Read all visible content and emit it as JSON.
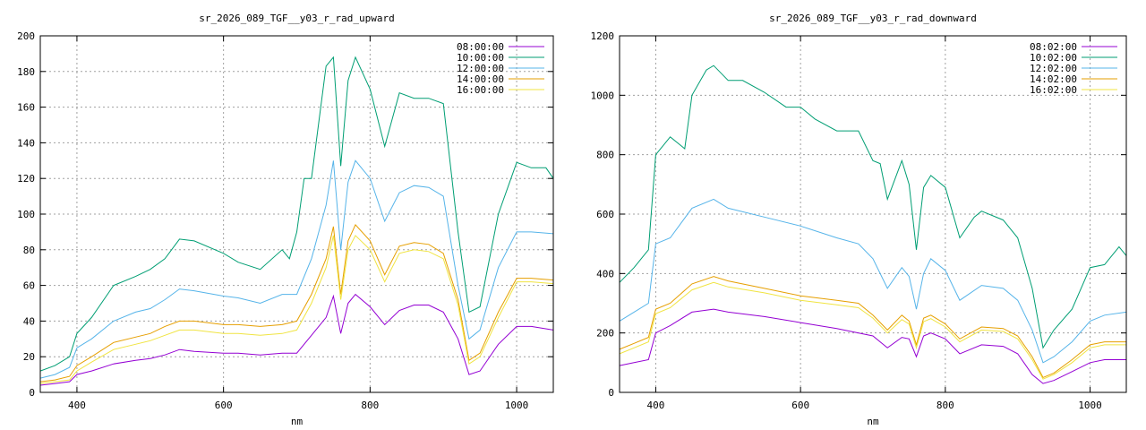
{
  "chart_data": [
    {
      "type": "line",
      "title": "sr_2026_089_TGF__y03_r_rad_upward",
      "xlabel": "nm",
      "ylabel": "",
      "xlim": [
        350,
        1050
      ],
      "ylim": [
        0,
        200
      ],
      "xticks": [
        400,
        600,
        800,
        1000
      ],
      "yticks": [
        0,
        20,
        40,
        60,
        80,
        100,
        120,
        140,
        160,
        180,
        200
      ],
      "grid": true,
      "legend": "top-right",
      "series": [
        {
          "name": "08:00:00",
          "color": "#9400d3",
          "x": [
            350,
            370,
            390,
            400,
            420,
            450,
            480,
            500,
            520,
            540,
            560,
            600,
            620,
            650,
            680,
            700,
            720,
            740,
            750,
            760,
            770,
            780,
            800,
            820,
            840,
            860,
            880,
            900,
            920,
            935,
            950,
            975,
            1000,
            1020,
            1050
          ],
          "y": [
            4,
            5,
            6,
            10,
            12,
            16,
            18,
            19,
            21,
            24,
            23,
            22,
            22,
            21,
            22,
            22,
            32,
            42,
            54,
            33,
            50,
            55,
            48,
            38,
            46,
            49,
            49,
            45,
            30,
            10,
            12,
            27,
            37,
            37,
            35
          ]
        },
        {
          "name": "10:00:00",
          "color": "#009e73",
          "x": [
            350,
            370,
            390,
            400,
            420,
            450,
            480,
            500,
            520,
            540,
            560,
            600,
            620,
            650,
            680,
            690,
            700,
            710,
            720,
            740,
            750,
            760,
            770,
            780,
            800,
            820,
            840,
            860,
            880,
            900,
            920,
            935,
            950,
            975,
            1000,
            1020,
            1040,
            1050
          ],
          "y": [
            12,
            15,
            20,
            33,
            42,
            60,
            65,
            69,
            75,
            86,
            85,
            78,
            73,
            69,
            80,
            75,
            90,
            120,
            120,
            183,
            188,
            127,
            175,
            188,
            170,
            138,
            168,
            165,
            165,
            162,
            90,
            45,
            48,
            100,
            129,
            126,
            126,
            120
          ]
        },
        {
          "name": "12:00:00",
          "color": "#56b4e9",
          "x": [
            350,
            370,
            390,
            400,
            420,
            450,
            480,
            500,
            520,
            540,
            560,
            600,
            620,
            650,
            680,
            700,
            720,
            740,
            750,
            760,
            770,
            780,
            800,
            820,
            840,
            860,
            880,
            900,
            920,
            935,
            950,
            975,
            1000,
            1020,
            1050
          ],
          "y": [
            8,
            10,
            14,
            25,
            30,
            40,
            45,
            47,
            52,
            58,
            57,
            54,
            53,
            50,
            55,
            55,
            75,
            105,
            130,
            80,
            118,
            130,
            120,
            96,
            112,
            116,
            115,
            110,
            60,
            30,
            35,
            70,
            90,
            90,
            89
          ]
        },
        {
          "name": "14:00:00",
          "color": "#e69f00",
          "x": [
            350,
            370,
            390,
            400,
            420,
            450,
            480,
            500,
            520,
            540,
            560,
            600,
            620,
            650,
            680,
            700,
            720,
            740,
            750,
            760,
            770,
            780,
            800,
            820,
            840,
            860,
            880,
            900,
            920,
            935,
            950,
            975,
            1000,
            1020,
            1050
          ],
          "y": [
            6,
            7,
            9,
            15,
            20,
            28,
            31,
            33,
            37,
            40,
            40,
            38,
            38,
            37,
            38,
            40,
            55,
            75,
            93,
            55,
            85,
            94,
            85,
            66,
            82,
            84,
            83,
            78,
            52,
            18,
            22,
            45,
            64,
            64,
            63
          ]
        },
        {
          "name": "16:00:00",
          "color": "#f0e442",
          "x": [
            350,
            370,
            390,
            400,
            420,
            450,
            480,
            500,
            520,
            540,
            560,
            600,
            620,
            650,
            680,
            700,
            720,
            740,
            750,
            760,
            770,
            780,
            800,
            820,
            840,
            860,
            880,
            900,
            920,
            935,
            950,
            975,
            1000,
            1020,
            1050
          ],
          "y": [
            5,
            6,
            7,
            12,
            17,
            24,
            27,
            29,
            32,
            35,
            35,
            33,
            33,
            32,
            33,
            35,
            50,
            70,
            88,
            52,
            80,
            88,
            80,
            62,
            78,
            80,
            79,
            75,
            49,
            16,
            20,
            42,
            62,
            62,
            61
          ]
        }
      ]
    },
    {
      "type": "line",
      "title": "sr_2026_089_TGF__y03_r_rad_downward",
      "xlabel": "nm",
      "ylabel": "",
      "xlim": [
        350,
        1050
      ],
      "ylim": [
        0,
        1200
      ],
      "xticks": [
        400,
        600,
        800,
        1000
      ],
      "yticks": [
        0,
        200,
        400,
        600,
        800,
        1000,
        1200
      ],
      "grid": true,
      "legend": "top-right",
      "series": [
        {
          "name": "08:02:00",
          "color": "#9400d3",
          "x": [
            350,
            370,
            390,
            400,
            420,
            450,
            480,
            500,
            550,
            600,
            650,
            700,
            720,
            740,
            750,
            760,
            770,
            780,
            800,
            820,
            850,
            880,
            900,
            920,
            935,
            950,
            975,
            1000,
            1020,
            1050
          ],
          "y": [
            90,
            100,
            110,
            200,
            225,
            270,
            280,
            270,
            255,
            235,
            215,
            190,
            150,
            185,
            180,
            120,
            190,
            200,
            180,
            130,
            160,
            155,
            130,
            60,
            30,
            40,
            70,
            100,
            110,
            110
          ]
        },
        {
          "name": "10:02:00",
          "color": "#009e73",
          "x": [
            350,
            370,
            390,
            400,
            420,
            440,
            450,
            470,
            480,
            500,
            520,
            550,
            580,
            600,
            620,
            650,
            680,
            700,
            710,
            720,
            740,
            750,
            760,
            770,
            780,
            800,
            820,
            840,
            850,
            880,
            900,
            920,
            935,
            950,
            975,
            1000,
            1020,
            1040,
            1050
          ],
          "y": [
            370,
            420,
            480,
            800,
            860,
            820,
            1000,
            1085,
            1100,
            1050,
            1050,
            1010,
            960,
            960,
            920,
            880,
            880,
            780,
            770,
            650,
            780,
            700,
            480,
            690,
            730,
            690,
            520,
            590,
            610,
            580,
            520,
            350,
            150,
            210,
            280,
            420,
            430,
            490,
            460
          ]
        },
        {
          "name": "12:02:00",
          "color": "#56b4e9",
          "x": [
            350,
            370,
            390,
            400,
            420,
            450,
            480,
            500,
            550,
            600,
            650,
            680,
            700,
            720,
            740,
            750,
            760,
            770,
            780,
            800,
            820,
            850,
            880,
            900,
            920,
            935,
            950,
            975,
            1000,
            1020,
            1050
          ],
          "y": [
            240,
            270,
            300,
            500,
            520,
            620,
            650,
            620,
            590,
            560,
            520,
            500,
            450,
            350,
            420,
            390,
            280,
            400,
            450,
            410,
            310,
            360,
            350,
            310,
            210,
            100,
            120,
            170,
            240,
            260,
            270
          ]
        },
        {
          "name": "14:02:00",
          "color": "#e69f00",
          "x": [
            350,
            370,
            390,
            400,
            420,
            450,
            480,
            500,
            550,
            600,
            650,
            680,
            700,
            720,
            740,
            750,
            760,
            770,
            780,
            800,
            820,
            850,
            880,
            900,
            920,
            935,
            950,
            975,
            1000,
            1020,
            1050
          ],
          "y": [
            145,
            165,
            185,
            280,
            300,
            365,
            390,
            375,
            350,
            325,
            310,
            300,
            260,
            210,
            260,
            240,
            160,
            250,
            260,
            230,
            180,
            220,
            215,
            190,
            120,
            50,
            65,
            110,
            160,
            170,
            170
          ]
        },
        {
          "name": "16:02:00",
          "color": "#f0e442",
          "x": [
            350,
            370,
            390,
            400,
            420,
            450,
            480,
            500,
            550,
            600,
            650,
            680,
            700,
            720,
            740,
            750,
            760,
            770,
            780,
            800,
            820,
            850,
            880,
            900,
            920,
            935,
            950,
            975,
            1000,
            1020,
            1050
          ],
          "y": [
            130,
            150,
            170,
            265,
            285,
            345,
            370,
            355,
            335,
            310,
            295,
            285,
            250,
            200,
            245,
            230,
            150,
            238,
            248,
            220,
            170,
            210,
            205,
            180,
            110,
            45,
            60,
            100,
            150,
            160,
            160
          ]
        }
      ]
    }
  ]
}
